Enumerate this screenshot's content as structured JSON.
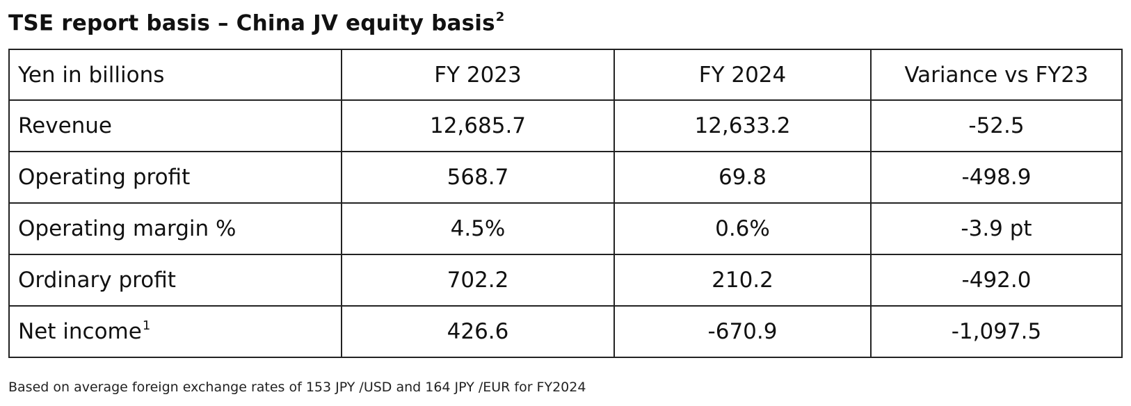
{
  "title": {
    "text": "TSE report basis – China JV equity basis",
    "superscript": "2"
  },
  "table": {
    "headers": [
      "Yen in billions",
      "FY 2023",
      "FY 2024",
      "Variance vs FY23"
    ],
    "rows": [
      {
        "label": "Revenue",
        "superscript": "",
        "fy2023": "12,685.7",
        "fy2024": "12,633.2",
        "variance": "-52.5"
      },
      {
        "label": "Operating profit",
        "superscript": "",
        "fy2023": "568.7",
        "fy2024": "69.8",
        "variance": "-498.9"
      },
      {
        "label": "Operating margin %",
        "superscript": "",
        "fy2023": "4.5%",
        "fy2024": "0.6%",
        "variance": "-3.9 pt"
      },
      {
        "label": "Ordinary profit",
        "superscript": "",
        "fy2023": "702.2",
        "fy2024": "210.2",
        "variance": "-492.0"
      },
      {
        "label": "Net income",
        "superscript": "1",
        "fy2023": "426.6",
        "fy2024": "-670.9",
        "variance": "-1,097.5"
      }
    ]
  },
  "footnote": "Based on average foreign exchange rates of 153 JPY /USD and 164 JPY /EUR for FY2024"
}
